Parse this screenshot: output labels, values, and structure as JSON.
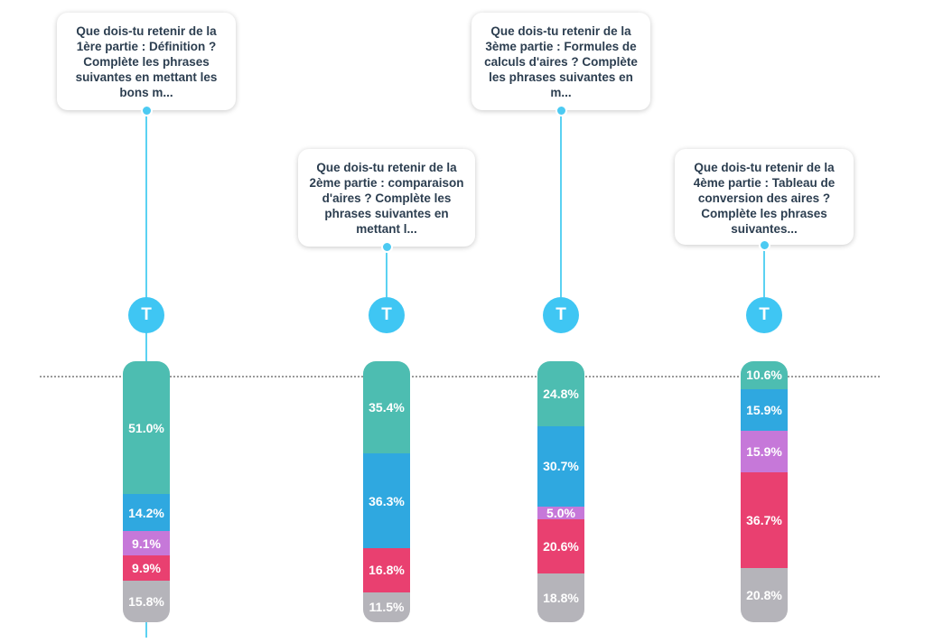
{
  "chart_data": {
    "type": "bar",
    "stacked": true,
    "orientation": "vertical",
    "categories": [
      "Que dois-tu retenir de la 1ère partie : Définition ? Complète les phrases suivantes en mettant les bons m...",
      "Que dois-tu retenir de la 2ème partie : comparaison d'aires ? Complète les phrases suivantes en mettant l...",
      "Que dois-tu retenir de la 3ème partie : Formules de calculs d'aires ? Complète les phrases suivantes en m...",
      "Que dois-tu retenir de la 4ème partie : Tableau de conversion des aires ? Complète les phrases suivantes..."
    ],
    "series": [
      {
        "color": "#4dbdb1",
        "values": [
          51.0,
          35.4,
          24.8,
          10.6
        ],
        "labels": [
          "51.0%",
          "35.4%",
          "24.8%",
          "10.6%"
        ]
      },
      {
        "color": "#2fa8e0",
        "values": [
          14.2,
          36.3,
          30.7,
          15.9
        ],
        "labels": [
          "14.2%",
          "36.3%",
          "30.7%",
          "15.9%"
        ]
      },
      {
        "color": "#c678d9",
        "values": [
          9.1,
          0,
          5.0,
          15.9
        ],
        "labels": [
          "9.1%",
          "",
          "5.0%",
          "15.9%"
        ]
      },
      {
        "color": "#e94070",
        "values": [
          9.9,
          16.8,
          20.6,
          36.7
        ],
        "labels": [
          "9.9%",
          "16.8%",
          "20.6%",
          "36.7%"
        ]
      },
      {
        "color": "#b5b4ba",
        "values": [
          15.8,
          11.5,
          18.8,
          20.8
        ],
        "labels": [
          "15.8%",
          "11.5%",
          "18.8%",
          "20.8%"
        ]
      }
    ],
    "ylim": [
      0,
      100
    ],
    "badge_label": "T",
    "badge_color": "#3fc6f3",
    "connector_color": "#5bd2f2"
  }
}
